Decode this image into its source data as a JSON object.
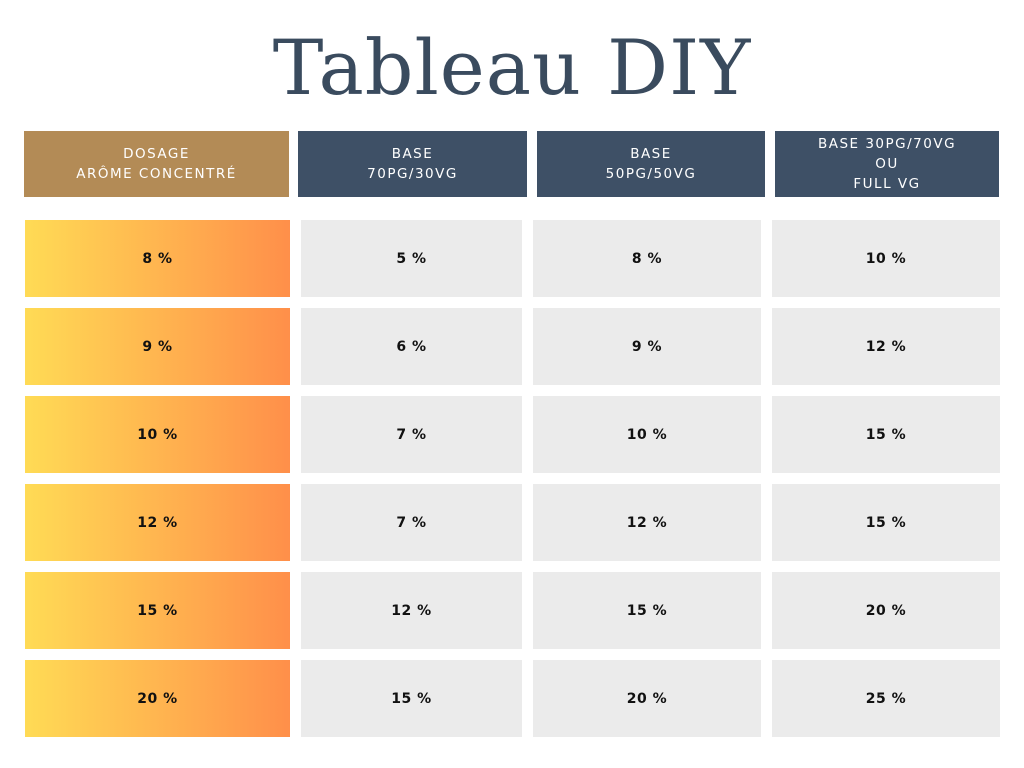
{
  "title": "Tableau DIY",
  "headers": [
    "DOSAGE\nARÔME CONCENTRÉ",
    "BASE\n70PG/30VG",
    "BASE\n50PG/50VG",
    "BASE 30PG/70VG\nOU\nFULL VG"
  ],
  "rows": [
    [
      "8 %",
      "5 %",
      "8 %",
      "10 %"
    ],
    [
      "9 %",
      "6 %",
      "9 %",
      "12 %"
    ],
    [
      "10 %",
      "7 %",
      "10 %",
      "15 %"
    ],
    [
      "12 %",
      "7 %",
      "12 %",
      "15 %"
    ],
    [
      "15 %",
      "12 %",
      "15 %",
      "20 %"
    ],
    [
      "20 %",
      "15 %",
      "20 %",
      "25 %"
    ]
  ],
  "colors": {
    "title": "#3a4b5e",
    "header_dosage": "#b38b56",
    "header_base": "#3e5066",
    "dosage_gradient_start": "#ffdb55",
    "dosage_gradient_end": "#ff8f4a",
    "value_cell": "#ebebeb"
  }
}
